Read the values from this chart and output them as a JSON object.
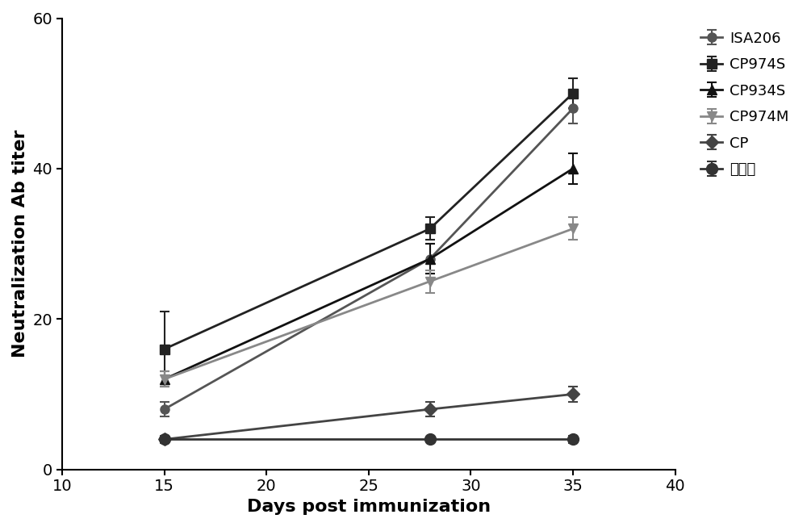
{
  "x": [
    15,
    28,
    35
  ],
  "series": [
    {
      "label": "ISA206",
      "y": [
        8,
        28,
        48
      ],
      "yerr": [
        1,
        2,
        2
      ],
      "color": "#555555",
      "marker": "o",
      "markersize": 8,
      "linewidth": 2
    },
    {
      "label": "CP974S",
      "y": [
        16,
        32,
        50
      ],
      "yerr": [
        5,
        1.5,
        2
      ],
      "color": "#222222",
      "marker": "s",
      "markersize": 8,
      "linewidth": 2
    },
    {
      "label": "CP934S",
      "y": [
        12,
        28,
        40
      ],
      "yerr": [
        1,
        2,
        2
      ],
      "color": "#111111",
      "marker": "^",
      "markersize": 8,
      "linewidth": 2
    },
    {
      "label": "CP974M",
      "y": [
        12,
        25,
        32
      ],
      "yerr": [
        1,
        1.5,
        1.5
      ],
      "color": "#888888",
      "marker": "v",
      "markersize": 8,
      "linewidth": 2
    },
    {
      "label": "CP",
      "y": [
        4,
        8,
        10
      ],
      "yerr": [
        0.5,
        1,
        1
      ],
      "color": "#444444",
      "marker": "D",
      "markersize": 8,
      "linewidth": 2
    },
    {
      "label": "对照组",
      "y": [
        4,
        4,
        4
      ],
      "yerr": [
        0.3,
        0.3,
        0.5
      ],
      "color": "#333333",
      "marker": "o",
      "markersize": 10,
      "linewidth": 2
    }
  ],
  "xlabel": "Days post immunization",
  "ylabel": "Neutralization Ab titer",
  "xlim": [
    10,
    40
  ],
  "ylim": [
    0,
    60
  ],
  "xticks": [
    10,
    15,
    20,
    25,
    30,
    35,
    40
  ],
  "yticks": [
    0,
    20,
    40,
    60
  ],
  "background_color": "#ffffff",
  "legend_fontsize": 13,
  "axis_label_fontsize": 16,
  "tick_fontsize": 14
}
